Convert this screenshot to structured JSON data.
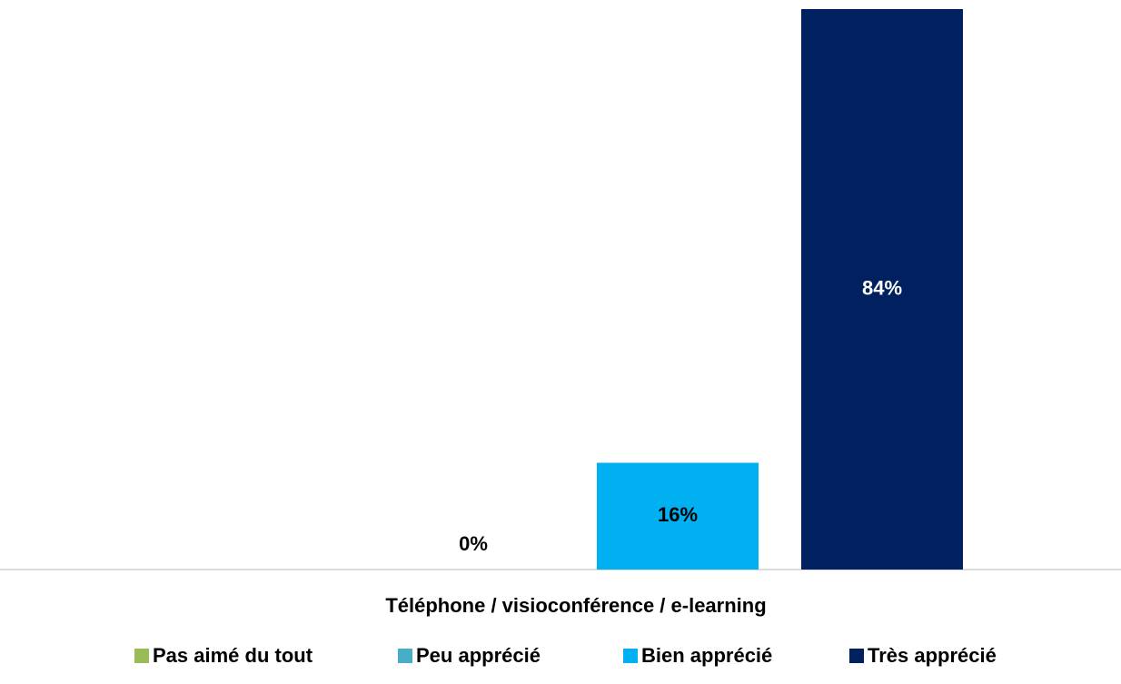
{
  "chart_data": {
    "type": "bar",
    "categories": [
      "Téléphone / visioconférence / e-learning"
    ],
    "series": [
      {
        "name": "Pas aimé du tout",
        "color": "#9bbb59",
        "values": [
          0
        ]
      },
      {
        "name": "Peu apprécié",
        "color": "#4bacc6",
        "values": [
          0
        ],
        "value_labels": [
          "0%"
        ]
      },
      {
        "name": "Bien apprécié",
        "color": "#00b0f0",
        "values": [
          16
        ],
        "value_labels": [
          "16%"
        ]
      },
      {
        "name": "Très apprécié",
        "color": "#002060",
        "values": [
          84
        ],
        "value_labels": [
          "84%"
        ]
      }
    ],
    "ylim": [
      0,
      84
    ],
    "legend": "bottom"
  }
}
